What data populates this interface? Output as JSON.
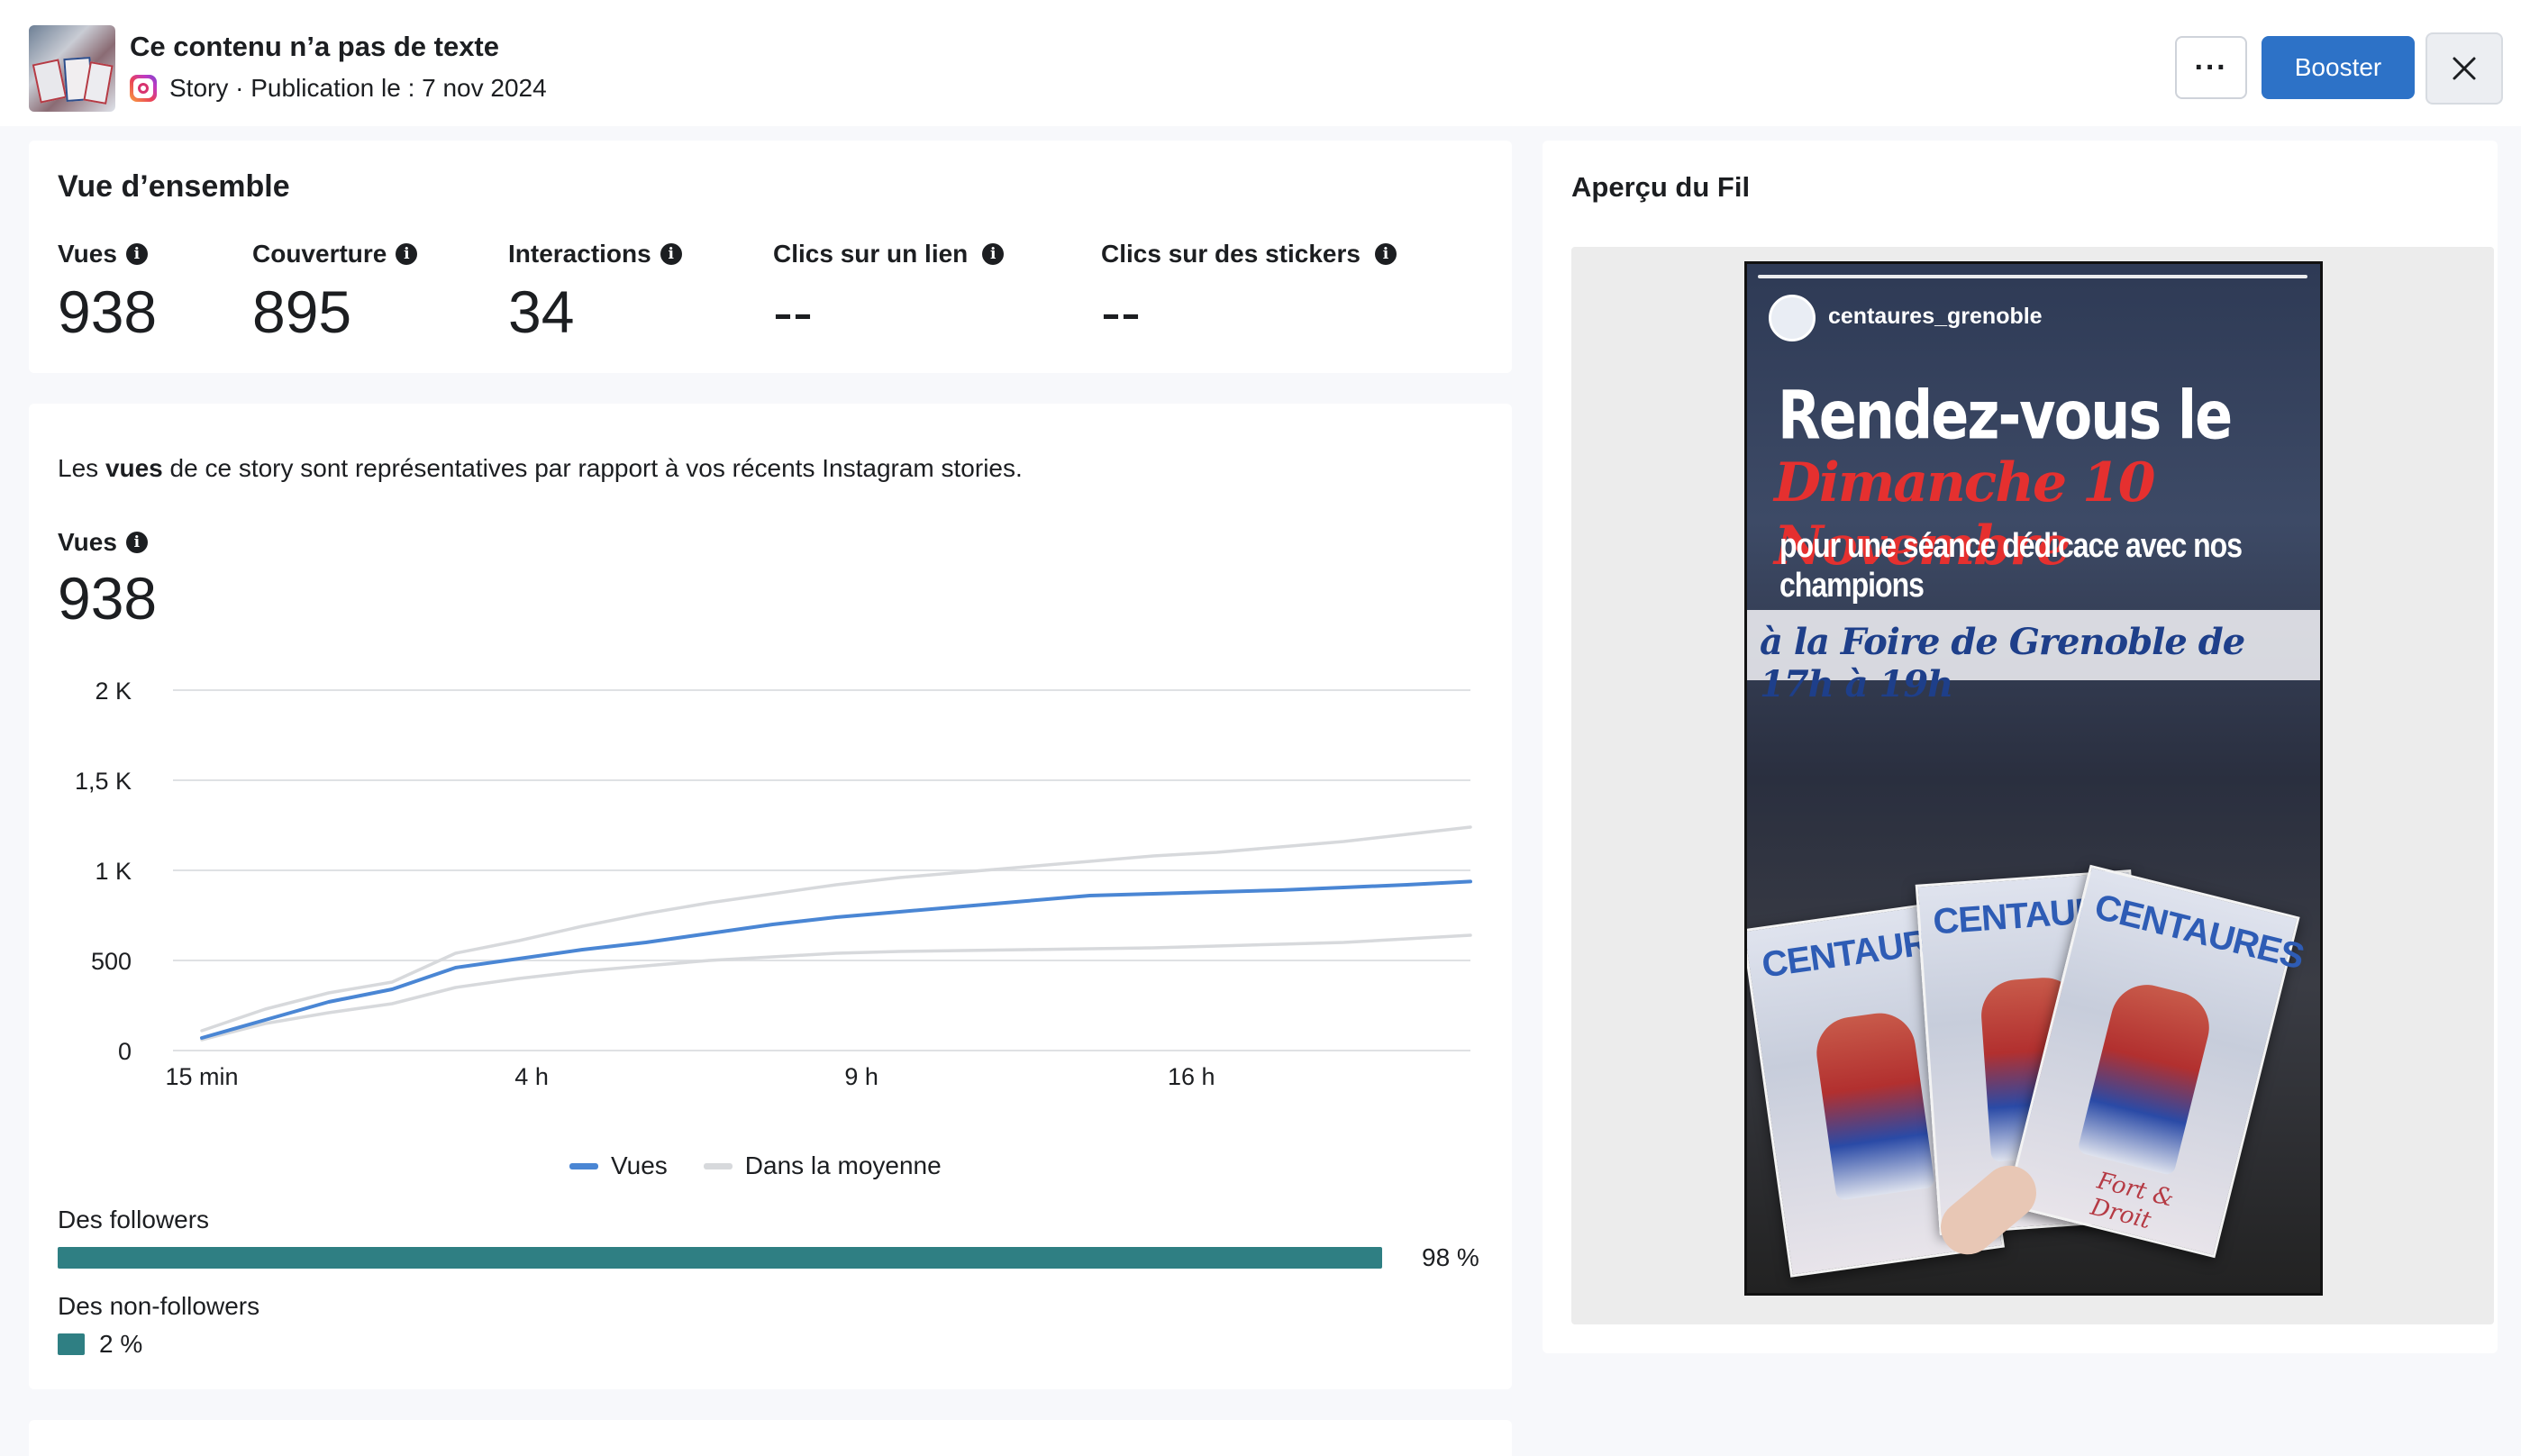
{
  "header": {
    "title": "Ce contenu n’a pas de texte",
    "meta": "Story · Publication le : 7 nov 2024",
    "more_label": "···",
    "boost_label": "Booster",
    "close_label": "✕"
  },
  "overview": {
    "title": "Vue d’ensemble",
    "metrics": [
      {
        "label": "Vues",
        "value": "938"
      },
      {
        "label": "Couverture",
        "value": "895"
      },
      {
        "label": "Interactions",
        "value": "34"
      },
      {
        "label": "Clics sur un lien",
        "value": "--"
      },
      {
        "label": "Clics sur des stickers",
        "value": "--"
      }
    ],
    "info_glyph": "i"
  },
  "views_section": {
    "rep_prefix": "Les ",
    "rep_bold": "vues",
    "rep_suffix": " de ce story sont représentatives par rapport à vos récents Instagram stories.",
    "label": "Vues",
    "value": "938"
  },
  "chart_data": {
    "type": "line",
    "title": "",
    "x_ticks": [
      "15 min",
      "4 h",
      "9 h",
      "16 h"
    ],
    "y_ticks": [
      "0",
      "500",
      "1 K",
      "1,5 K",
      "2 K"
    ],
    "ylim": [
      0,
      2000
    ],
    "x_positions": [
      0,
      0.05,
      0.1,
      0.15,
      0.2,
      0.25,
      0.3,
      0.35,
      0.4,
      0.45,
      0.5,
      0.55,
      0.6,
      0.65,
      0.7,
      0.75,
      0.8,
      0.85,
      0.9,
      0.95,
      1.0
    ],
    "x_tick_positions": [
      0,
      0.26,
      0.52,
      0.78
    ],
    "series": [
      {
        "name": "Vues",
        "color": "#4a86d4",
        "values": [
          70,
          170,
          270,
          340,
          460,
          510,
          560,
          600,
          650,
          700,
          740,
          770,
          800,
          830,
          860,
          870,
          880,
          890,
          905,
          920,
          938
        ]
      },
      {
        "name": "Dans la moyenne",
        "color": "#d7d9dc",
        "values": [
          110,
          230,
          320,
          380,
          540,
          610,
          690,
          760,
          820,
          870,
          920,
          960,
          990,
          1020,
          1050,
          1080,
          1100,
          1130,
          1160,
          1200,
          1240
        ]
      },
      {
        "name": "",
        "color": "#d7d9dc",
        "values": [
          60,
          150,
          210,
          260,
          350,
          400,
          440,
          470,
          500,
          520,
          540,
          550,
          555,
          560,
          565,
          570,
          580,
          590,
          600,
          620,
          640
        ]
      }
    ],
    "grid": true,
    "legend": "bottom-center"
  },
  "legend": {
    "items": [
      {
        "label": "Vues",
        "color": "#4a86d4"
      },
      {
        "label": "Dans la moyenne",
        "color": "#d7d9dc"
      }
    ]
  },
  "audience": {
    "followers_label": "Des followers",
    "followers_pct_text": "98 %",
    "followers_fraction": 0.98,
    "non_followers_label": "Des non-followers",
    "non_followers_pct_text": "2 %",
    "non_followers_fraction": 0.02
  },
  "preview": {
    "title": "Aperçu du Fil",
    "handle": "centaures_grenoble",
    "line1": "Rendez-vous le",
    "line2": "Dimanche 10 Novembre",
    "line3": "pour une séance dédicace avec nos champions",
    "line4": "à la Foire de Grenoble de 17h à 19h",
    "poster_title": "CENTAURES",
    "poster_sig": "Fort & Droit"
  }
}
